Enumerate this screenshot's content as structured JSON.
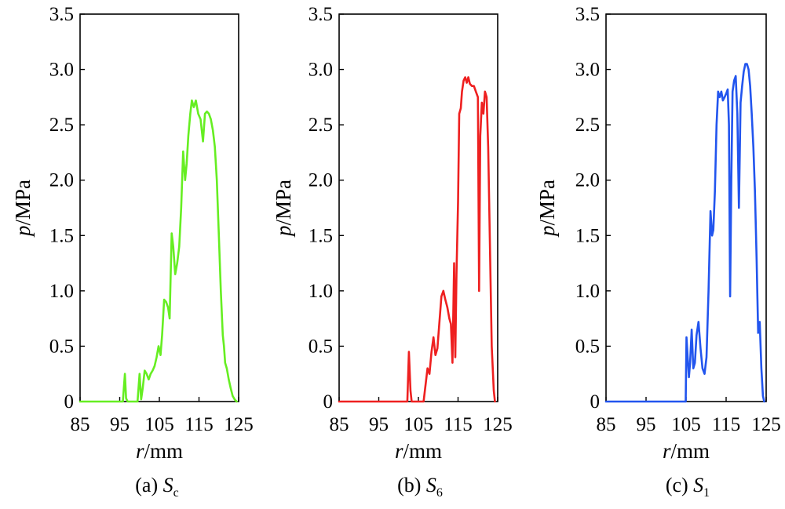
{
  "chart_data": [
    {
      "type": "line",
      "caption_prefix": "(a) ",
      "caption_symbol": "S",
      "caption_subscript": "c",
      "xlabel_italic": "r",
      "xlabel_unit": "/mm",
      "ylabel_italic": "p",
      "ylabel_unit": "/MPa",
      "xlim": [
        85,
        125
      ],
      "ylim": [
        0,
        3.5
      ],
      "xticks": [
        85,
        95,
        105,
        115,
        125
      ],
      "xtick_labels": [
        "85",
        "95",
        "105",
        "115",
        "125"
      ],
      "yticks": [
        0,
        0.5,
        1.0,
        1.5,
        2.0,
        2.5,
        3.0,
        3.5
      ],
      "ytick_labels": [
        "0",
        "0.5",
        "1.0",
        "1.5",
        "2.0",
        "2.5",
        "3.0",
        "3.5"
      ],
      "grid": false,
      "color": "#66ee22",
      "series": [
        {
          "x": [
            85,
            95.8,
            96.3,
            96.6,
            97.0,
            99.5,
            100.0,
            100.4,
            100.8,
            101.3,
            101.8,
            102.3,
            102.8,
            103.3,
            103.8,
            104.3,
            104.8,
            105.3,
            105.7,
            106.2,
            106.7,
            107.2,
            107.6,
            108.1,
            108.5,
            109.0,
            109.5,
            110.0,
            110.5,
            111.0,
            111.5,
            111.9,
            112.3,
            112.8,
            113.2,
            113.7,
            114.2,
            114.8,
            115.4,
            116.0,
            116.5,
            117.0,
            117.5,
            118.0,
            118.5,
            119.0,
            119.5,
            120.0,
            120.5,
            121.0,
            121.3,
            121.6,
            122.0,
            122.5,
            123.0,
            123.5,
            124.0,
            124.5
          ],
          "y": [
            0,
            0,
            0.25,
            0.03,
            0,
            0,
            0.25,
            0.02,
            0.12,
            0.28,
            0.25,
            0.2,
            0.25,
            0.28,
            0.32,
            0.4,
            0.5,
            0.42,
            0.6,
            0.92,
            0.9,
            0.85,
            0.75,
            1.52,
            1.4,
            1.15,
            1.25,
            1.4,
            1.75,
            2.26,
            2.0,
            2.15,
            2.4,
            2.6,
            2.72,
            2.66,
            2.72,
            2.6,
            2.55,
            2.35,
            2.6,
            2.62,
            2.6,
            2.55,
            2.45,
            2.3,
            2.0,
            1.5,
            1.0,
            0.6,
            0.5,
            0.35,
            0.3,
            0.2,
            0.12,
            0.05,
            0.02,
            0
          ]
        }
      ]
    },
    {
      "type": "line",
      "caption_prefix": "(b) ",
      "caption_symbol": "S",
      "caption_subscript": "6",
      "xlabel_italic": "r",
      "xlabel_unit": "/mm",
      "ylabel_italic": "p",
      "ylabel_unit": "/MPa",
      "xlim": [
        85,
        125
      ],
      "ylim": [
        0,
        3.5
      ],
      "xticks": [
        85,
        95,
        105,
        115,
        125
      ],
      "xtick_labels": [
        "85",
        "95",
        "105",
        "115",
        "125"
      ],
      "yticks": [
        0,
        0.5,
        1.0,
        1.5,
        2.0,
        2.5,
        3.0,
        3.5
      ],
      "ytick_labels": [
        "0",
        "0.5",
        "1.0",
        "1.5",
        "2.0",
        "2.5",
        "3.0",
        "3.5"
      ],
      "grid": false,
      "color": "#ee2020",
      "series": [
        {
          "x": [
            85,
            102.2,
            102.6,
            103.0,
            103.3,
            106.3,
            106.8,
            107.3,
            107.8,
            108.3,
            108.8,
            109.3,
            109.8,
            110.3,
            110.8,
            111.3,
            111.8,
            112.3,
            112.8,
            113.2,
            113.6,
            114.0,
            114.3,
            114.6,
            115.0,
            115.3,
            115.7,
            116.0,
            116.4,
            116.8,
            117.2,
            117.6,
            118.0,
            118.5,
            119.0,
            119.5,
            120.0,
            120.3,
            120.6,
            121.0,
            121.4,
            121.8,
            122.2,
            122.6,
            123.0,
            123.5,
            124.0,
            124.3
          ],
          "y": [
            0,
            0,
            0.45,
            0.1,
            0,
            0,
            0.15,
            0.3,
            0.25,
            0.45,
            0.58,
            0.42,
            0.48,
            0.72,
            0.95,
            1.0,
            0.92,
            0.85,
            0.75,
            0.7,
            0.35,
            1.25,
            0.4,
            1.15,
            1.8,
            2.6,
            2.65,
            2.8,
            2.9,
            2.93,
            2.88,
            2.93,
            2.87,
            2.85,
            2.85,
            2.8,
            2.75,
            1.0,
            2.4,
            2.7,
            2.6,
            2.8,
            2.75,
            2.3,
            1.5,
            0.5,
            0.1,
            0
          ]
        }
      ]
    },
    {
      "type": "line",
      "caption_prefix": "(c) ",
      "caption_symbol": "S",
      "caption_subscript": "1",
      "xlabel_italic": "r",
      "xlabel_unit": "/mm",
      "ylabel_italic": "p",
      "ylabel_unit": "/MPa",
      "xlim": [
        85,
        125
      ],
      "ylim": [
        0,
        3.5
      ],
      "xticks": [
        85,
        95,
        105,
        115,
        125
      ],
      "xtick_labels": [
        "85",
        "95",
        "105",
        "115",
        "125"
      ],
      "yticks": [
        0,
        0.5,
        1.0,
        1.5,
        2.0,
        2.5,
        3.0,
        3.5
      ],
      "ytick_labels": [
        "0",
        "0.5",
        "1.0",
        "1.5",
        "2.0",
        "2.5",
        "3.0",
        "3.5"
      ],
      "grid": false,
      "color": "#2255ee",
      "series": [
        {
          "x": [
            85,
            104.9,
            105.1,
            105.4,
            105.7,
            106.0,
            106.4,
            106.8,
            107.2,
            107.6,
            108.1,
            108.6,
            109.1,
            109.6,
            110.1,
            110.6,
            111.1,
            111.5,
            111.8,
            112.2,
            112.6,
            113.0,
            113.4,
            113.8,
            114.2,
            114.6,
            115.0,
            115.4,
            115.7,
            116.0,
            116.3,
            116.6,
            117.0,
            117.4,
            117.8,
            118.2,
            118.6,
            119.0,
            119.4,
            119.8,
            120.2,
            120.6,
            121.0,
            121.4,
            121.8,
            122.2,
            122.6,
            123.0,
            123.4,
            123.8,
            124.2,
            124.5
          ],
          "y": [
            0,
            0,
            0.58,
            0.4,
            0.22,
            0.35,
            0.65,
            0.3,
            0.35,
            0.6,
            0.72,
            0.48,
            0.3,
            0.25,
            0.4,
            1.0,
            1.72,
            1.5,
            1.55,
            1.9,
            2.5,
            2.8,
            2.75,
            2.8,
            2.72,
            2.75,
            2.78,
            2.82,
            2.5,
            0.95,
            2.0,
            2.8,
            2.9,
            2.94,
            2.6,
            1.75,
            2.7,
            2.85,
            2.98,
            3.05,
            3.05,
            3.0,
            2.85,
            2.6,
            2.3,
            1.9,
            1.3,
            0.62,
            0.72,
            0.3,
            0.05,
            0
          ]
        }
      ]
    }
  ]
}
